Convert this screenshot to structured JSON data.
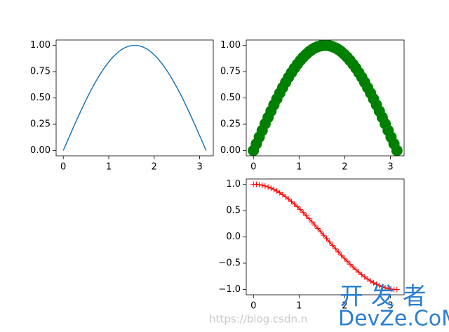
{
  "chart_data": [
    {
      "type": "line",
      "color": "#1f77b4",
      "linestyle": "-",
      "marker": null,
      "x": [
        0,
        0.064,
        0.128,
        0.192,
        0.256,
        0.321,
        0.385,
        0.449,
        0.513,
        0.577,
        0.641,
        0.705,
        0.769,
        0.833,
        0.898,
        0.962,
        1.026,
        1.09,
        1.154,
        1.218,
        1.282,
        1.346,
        1.411,
        1.475,
        1.539,
        1.603,
        1.667,
        1.731,
        1.795,
        1.859,
        1.923,
        1.988,
        2.052,
        2.116,
        2.18,
        2.244,
        2.308,
        2.372,
        2.436,
        2.5,
        2.565,
        2.629,
        2.693,
        2.757,
        2.821,
        2.885,
        2.949,
        3.013,
        3.078,
        3.142
      ],
      "values": [
        0,
        0.064,
        0.128,
        0.191,
        0.254,
        0.315,
        0.375,
        0.434,
        0.491,
        0.546,
        0.598,
        0.648,
        0.696,
        0.74,
        0.782,
        0.82,
        0.855,
        0.887,
        0.914,
        0.939,
        0.959,
        0.975,
        0.987,
        0.995,
        0.999,
        0.999,
        0.995,
        0.987,
        0.975,
        0.959,
        0.939,
        0.914,
        0.887,
        0.855,
        0.82,
        0.782,
        0.74,
        0.696,
        0.648,
        0.598,
        0.546,
        0.491,
        0.434,
        0.375,
        0.315,
        0.254,
        0.191,
        0.128,
        0.064,
        0
      ],
      "xlim": [
        -0.157,
        3.299
      ],
      "ylim": [
        -0.05,
        1.05
      ],
      "xticks": [
        0,
        1,
        2,
        3
      ],
      "yticks": [
        {
          "value": 0,
          "label": "0.00"
        },
        {
          "value": 0.25,
          "label": "0.25"
        },
        {
          "value": 0.5,
          "label": "0.50"
        },
        {
          "value": 0.75,
          "label": "0.75"
        },
        {
          "value": 1,
          "label": "1.00"
        }
      ]
    },
    {
      "type": "line",
      "color": "#008000",
      "linestyle": null,
      "marker": "o",
      "x": [
        0,
        0.064,
        0.128,
        0.192,
        0.256,
        0.321,
        0.385,
        0.449,
        0.513,
        0.577,
        0.641,
        0.705,
        0.769,
        0.833,
        0.898,
        0.962,
        1.026,
        1.09,
        1.154,
        1.218,
        1.282,
        1.346,
        1.411,
        1.475,
        1.539,
        1.603,
        1.667,
        1.731,
        1.795,
        1.859,
        1.923,
        1.988,
        2.052,
        2.116,
        2.18,
        2.244,
        2.308,
        2.372,
        2.436,
        2.5,
        2.565,
        2.629,
        2.693,
        2.757,
        2.821,
        2.885,
        2.949,
        3.013,
        3.078,
        3.142
      ],
      "values": [
        0,
        0.064,
        0.128,
        0.191,
        0.254,
        0.315,
        0.375,
        0.434,
        0.491,
        0.546,
        0.598,
        0.648,
        0.696,
        0.74,
        0.782,
        0.82,
        0.855,
        0.887,
        0.914,
        0.939,
        0.959,
        0.975,
        0.987,
        0.995,
        0.999,
        0.999,
        0.995,
        0.987,
        0.975,
        0.959,
        0.939,
        0.914,
        0.887,
        0.855,
        0.82,
        0.782,
        0.74,
        0.696,
        0.648,
        0.598,
        0.546,
        0.491,
        0.434,
        0.375,
        0.315,
        0.254,
        0.191,
        0.128,
        0.064,
        0
      ],
      "xlim": [
        -0.157,
        3.299
      ],
      "ylim": [
        -0.05,
        1.05
      ],
      "xticks": [
        0,
        1,
        2,
        3
      ],
      "yticks": [
        {
          "value": 0,
          "label": "0.00"
        },
        {
          "value": 0.25,
          "label": "0.25"
        },
        {
          "value": 0.5,
          "label": "0.50"
        },
        {
          "value": 0.75,
          "label": "0.75"
        },
        {
          "value": 1,
          "label": "1.00"
        }
      ]
    },
    {
      "type": "line",
      "color": "#ff0000",
      "linestyle": "-",
      "marker": "+",
      "x": [
        0,
        0.064,
        0.128,
        0.192,
        0.256,
        0.321,
        0.385,
        0.449,
        0.513,
        0.577,
        0.641,
        0.705,
        0.769,
        0.833,
        0.898,
        0.962,
        1.026,
        1.09,
        1.154,
        1.218,
        1.282,
        1.346,
        1.411,
        1.475,
        1.539,
        1.603,
        1.667,
        1.731,
        1.795,
        1.859,
        1.923,
        1.988,
        2.052,
        2.116,
        2.18,
        2.244,
        2.308,
        2.372,
        2.436,
        2.5,
        2.565,
        2.629,
        2.693,
        2.757,
        2.821,
        2.885,
        2.949,
        3.013,
        3.078,
        3.142
      ],
      "values": [
        1,
        0.998,
        0.992,
        0.982,
        0.967,
        0.949,
        0.927,
        0.901,
        0.871,
        0.838,
        0.802,
        0.762,
        0.718,
        0.672,
        0.624,
        0.572,
        0.518,
        0.462,
        0.405,
        0.345,
        0.285,
        0.223,
        0.16,
        0.096,
        0.032,
        -0.032,
        -0.096,
        -0.16,
        -0.223,
        -0.285,
        -0.345,
        -0.405,
        -0.462,
        -0.518,
        -0.572,
        -0.624,
        -0.672,
        -0.718,
        -0.762,
        -0.802,
        -0.838,
        -0.871,
        -0.901,
        -0.927,
        -0.949,
        -0.967,
        -0.982,
        -0.992,
        -0.998,
        -1
      ],
      "xlim": [
        -0.157,
        3.299
      ],
      "ylim": [
        -1.1,
        1.1
      ],
      "xticks": [
        0,
        1,
        2,
        3
      ],
      "yticks": [
        {
          "value": -1,
          "label": "−1.0"
        },
        {
          "value": -0.5,
          "label": "−0.5"
        },
        {
          "value": 0,
          "label": "0.0"
        },
        {
          "value": 0.5,
          "label": "0.5"
        },
        {
          "value": 1,
          "label": "1.0"
        }
      ]
    }
  ],
  "watermark": {
    "url": "https://blog.csdn.n",
    "brand_cn": "开 发 者",
    "brand_en": "DevZe.CoM"
  }
}
